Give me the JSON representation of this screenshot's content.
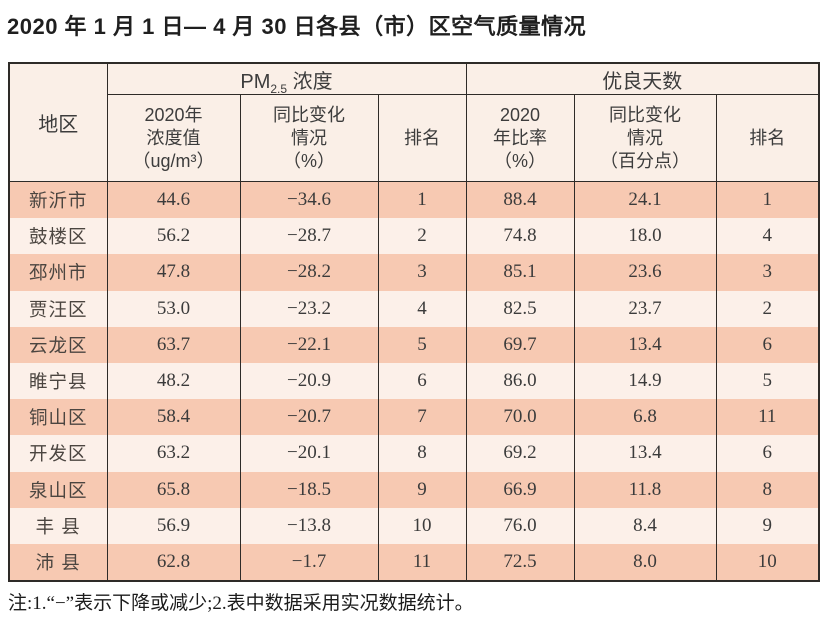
{
  "page": {
    "title": "2020 年 1 月 1 日— 4 月 30 日各县（市）区空气质量情况",
    "note": "注:1.“−”表示下降或减少;2.表中数据采用实况数据统计。"
  },
  "colors": {
    "row_stripe_dark": "#f7c9b2",
    "row_stripe_light": "#fcf0e9",
    "header_bg": "#faefe7",
    "border": "#2e2b28",
    "page_bg": "#ffffff"
  },
  "chart_data": {
    "type": "table",
    "title": "2020年1月1日—4月30日各县（市）区空气质量情况",
    "corner_header": "地区",
    "pm_group": {
      "prefix": "PM",
      "sub": "2.5",
      "suffix": " 浓度"
    },
    "good_days_group": "优良天数",
    "subheaders": [
      "2020年\n浓度值\n（ug/m³）",
      "同比变化\n情况\n（%）",
      "排名",
      "2020\n年比率\n（%）",
      "同比变化\n情况\n（百分点）",
      "排名"
    ],
    "rows": [
      [
        "新沂市",
        "44.6",
        "−34.6",
        "1",
        "88.4",
        "24.1",
        "1"
      ],
      [
        "鼓楼区",
        "56.2",
        "−28.7",
        "2",
        "74.8",
        "18.0",
        "4"
      ],
      [
        "邳州市",
        "47.8",
        "−28.2",
        "3",
        "85.1",
        "23.6",
        "3"
      ],
      [
        "贾汪区",
        "53.0",
        "−23.2",
        "4",
        "82.5",
        "23.7",
        "2"
      ],
      [
        "云龙区",
        "63.7",
        "−22.1",
        "5",
        "69.7",
        "13.4",
        "6"
      ],
      [
        "睢宁县",
        "48.2",
        "−20.9",
        "6",
        "86.0",
        "14.9",
        "5"
      ],
      [
        "铜山区",
        "58.4",
        "−20.7",
        "7",
        "70.0",
        "6.8",
        "11"
      ],
      [
        "开发区",
        "63.2",
        "−20.1",
        "8",
        "69.2",
        "13.4",
        "6"
      ],
      [
        "泉山区",
        "65.8",
        "−18.5",
        "9",
        "66.9",
        "11.8",
        "8"
      ],
      [
        "丰 县",
        "56.9",
        "−13.8",
        "10",
        "76.0",
        "8.4",
        "9"
      ],
      [
        "沛 县",
        "62.8",
        "−1.7",
        "11",
        "72.5",
        "8.0",
        "10"
      ]
    ]
  }
}
